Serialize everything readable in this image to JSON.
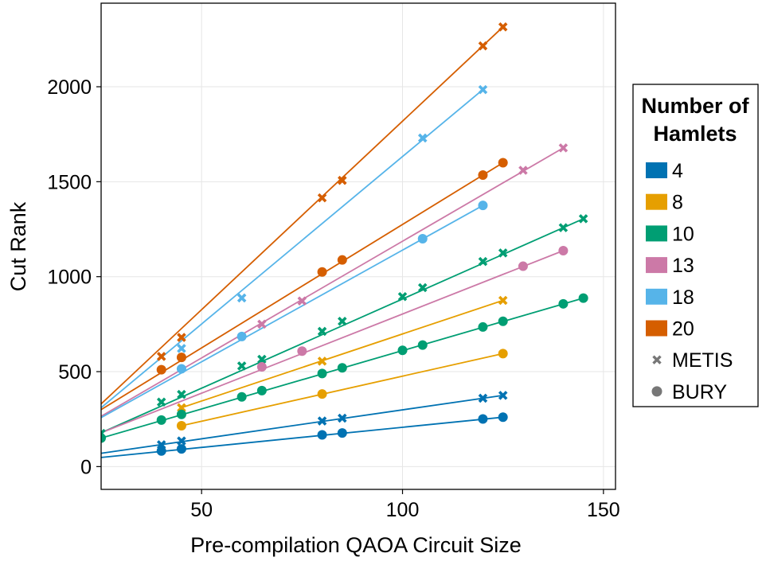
{
  "chart_data": {
    "type": "scatter",
    "xlabel": "Pre-compilation QAOA Circuit Size",
    "ylabel": "Cut Rank",
    "xlim": [
      25,
      153
    ],
    "ylim": [
      -120,
      2440
    ],
    "x_ticks": [
      50,
      100,
      150
    ],
    "x_tick_labels": [
      "50",
      "100",
      "150"
    ],
    "y_ticks": [
      0,
      500,
      1000,
      1500,
      2000
    ],
    "y_tick_labels": [
      "0",
      "500",
      "1000",
      "1500",
      "2000"
    ],
    "grid": true,
    "legend": {
      "placement": "right",
      "title_lines": [
        "Number of",
        "Hamlets"
      ],
      "entries": [
        {
          "label": "4",
          "color": "#0072B2"
        },
        {
          "label": "8",
          "color": "#E69F00"
        },
        {
          "label": "10",
          "color": "#009E73"
        },
        {
          "label": "13",
          "color": "#CC79A7"
        },
        {
          "label": "18",
          "color": "#56B4E9"
        },
        {
          "label": "20",
          "color": "#D55E00"
        }
      ],
      "markers": [
        {
          "label": "METIS",
          "shape": "x"
        },
        {
          "label": "BURY",
          "shape": "circle"
        }
      ]
    },
    "series": [
      {
        "name": "4",
        "method": "METIS",
        "color": "#0072B2",
        "x": [
          40,
          45,
          80,
          85,
          120,
          125
        ],
        "y": [
          115,
          135,
          240,
          255,
          360,
          375
        ]
      },
      {
        "name": "4",
        "method": "BURY",
        "color": "#0072B2",
        "x": [
          40,
          45,
          80,
          85,
          120,
          125
        ],
        "y": [
          82,
          93,
          167,
          177,
          251,
          260
        ]
      },
      {
        "name": "8",
        "method": "METIS",
        "color": "#E69F00",
        "x": [
          45,
          80,
          125
        ],
        "y": [
          310,
          555,
          875
        ]
      },
      {
        "name": "8",
        "method": "BURY",
        "color": "#E69F00",
        "x": [
          45,
          80,
          125
        ],
        "y": [
          215,
          382,
          595
        ]
      },
      {
        "name": "10",
        "method": "METIS",
        "color": "#009E73",
        "x": [
          25,
          40,
          45,
          60,
          65,
          80,
          85,
          100,
          105,
          120,
          125,
          140,
          145
        ],
        "y": [
          175,
          340,
          380,
          530,
          565,
          712,
          765,
          895,
          942,
          1080,
          1125,
          1258,
          1305
        ]
      },
      {
        "name": "10",
        "method": "BURY",
        "color": "#009E73",
        "x": [
          25,
          40,
          45,
          60,
          65,
          80,
          85,
          100,
          105,
          120,
          125,
          140,
          145
        ],
        "y": [
          150,
          245,
          275,
          367,
          400,
          490,
          520,
          612,
          640,
          735,
          765,
          857,
          887
        ]
      },
      {
        "name": "13",
        "method": "METIS",
        "color": "#CC79A7",
        "x": [
          65,
          75,
          130,
          140
        ],
        "y": [
          750,
          872,
          1560,
          1678
        ]
      },
      {
        "name": "13",
        "method": "BURY",
        "color": "#CC79A7",
        "x": [
          65,
          75,
          130,
          140
        ],
        "y": [
          525,
          608,
          1055,
          1137
        ]
      },
      {
        "name": "18",
        "method": "METIS",
        "color": "#56B4E9",
        "x": [
          45,
          60,
          105,
          120
        ],
        "y": [
          622,
          888,
          1730,
          1985
        ]
      },
      {
        "name": "18",
        "method": "BURY",
        "color": "#56B4E9",
        "x": [
          45,
          60,
          105,
          120
        ],
        "y": [
          515,
          685,
          1200,
          1375
        ]
      },
      {
        "name": "20",
        "method": "METIS",
        "color": "#D55E00",
        "x": [
          40,
          45,
          80,
          85,
          120,
          125
        ],
        "y": [
          580,
          680,
          1415,
          1507,
          2215,
          2315
        ]
      },
      {
        "name": "20",
        "method": "BURY",
        "color": "#D55E00",
        "x": [
          40,
          45,
          80,
          85,
          120,
          125
        ],
        "y": [
          510,
          575,
          1025,
          1088,
          1535,
          1600
        ]
      }
    ],
    "fit_lines": [
      {
        "name": "4",
        "method": "METIS",
        "color": "#0072B2",
        "x": [
          25,
          125
        ],
        "y": [
          70,
          375
        ]
      },
      {
        "name": "4",
        "method": "BURY",
        "color": "#0072B2",
        "x": [
          25,
          125
        ],
        "y": [
          48,
          260
        ]
      },
      {
        "name": "8",
        "method": "METIS",
        "color": "#E69F00",
        "x": [
          45,
          125
        ],
        "y": [
          310,
          875
        ]
      },
      {
        "name": "8",
        "method": "BURY",
        "color": "#E69F00",
        "x": [
          45,
          125
        ],
        "y": [
          215,
          595
        ]
      },
      {
        "name": "10",
        "method": "METIS",
        "color": "#009E73",
        "x": [
          25,
          145
        ],
        "y": [
          178,
          1305
        ]
      },
      {
        "name": "10",
        "method": "BURY",
        "color": "#009E73",
        "x": [
          25,
          145
        ],
        "y": [
          150,
          887
        ]
      },
      {
        "name": "13",
        "method": "METIS",
        "color": "#CC79A7",
        "x": [
          25,
          140
        ],
        "y": [
          265,
          1678
        ]
      },
      {
        "name": "13",
        "method": "BURY",
        "color": "#CC79A7",
        "x": [
          25,
          140
        ],
        "y": [
          178,
          1137
        ]
      },
      {
        "name": "18",
        "method": "METIS",
        "color": "#56B4E9",
        "x": [
          25,
          120
        ],
        "y": [
          310,
          1985
        ]
      },
      {
        "name": "18",
        "method": "BURY",
        "color": "#56B4E9",
        "x": [
          25,
          120
        ],
        "y": [
          258,
          1375
        ]
      },
      {
        "name": "20",
        "method": "METIS",
        "color": "#D55E00",
        "x": [
          25,
          125
        ],
        "y": [
          330,
          2315
        ]
      },
      {
        "name": "20",
        "method": "BURY",
        "color": "#D55E00",
        "x": [
          25,
          125
        ],
        "y": [
          300,
          1600
        ]
      }
    ]
  }
}
